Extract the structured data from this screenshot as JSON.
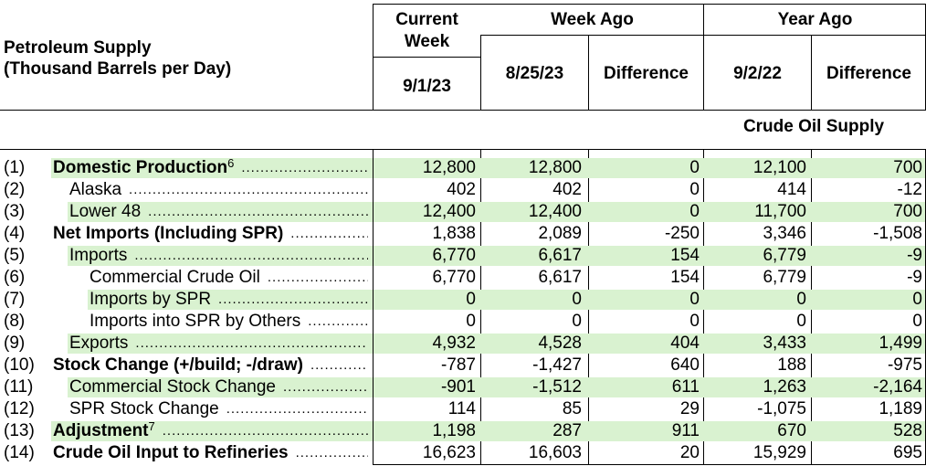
{
  "header": {
    "title_line1": "Petroleum Supply",
    "title_line2": "(Thousand Barrels per Day)",
    "current_week_line1": "Current",
    "current_week_line2": "Week",
    "current_week_date": "9/1/23",
    "week_ago": "Week Ago",
    "week_ago_date": "8/25/23",
    "week_ago_diff": "Difference",
    "year_ago": "Year Ago",
    "year_ago_date": "9/2/22",
    "year_ago_diff": "Difference"
  },
  "section_title": "Crude Oil Supply",
  "rows": [
    {
      "num": "(1)",
      "label": "Domestic Production",
      "sup": "6",
      "indent": 0,
      "bold": true,
      "shade": true,
      "current": "12,800",
      "week": "12,800",
      "week_diff": "0",
      "year": "12,100",
      "year_diff": "700"
    },
    {
      "num": "(2)",
      "label": "Alaska",
      "sup": "",
      "indent": 1,
      "bold": false,
      "shade": false,
      "current": "402",
      "week": "402",
      "week_diff": "0",
      "year": "414",
      "year_diff": "-12"
    },
    {
      "num": "(3)",
      "label": "Lower 48",
      "sup": "",
      "indent": 1,
      "bold": false,
      "shade": true,
      "current": "12,400",
      "week": "12,400",
      "week_diff": "0",
      "year": "11,700",
      "year_diff": "700"
    },
    {
      "num": "(4)",
      "label": "Net Imports (Including SPR)",
      "sup": "",
      "indent": 0,
      "bold": true,
      "shade": false,
      "current": "1,838",
      "week": "2,089",
      "week_diff": "-250",
      "year": "3,346",
      "year_diff": "-1,508"
    },
    {
      "num": "(5)",
      "label": "Imports",
      "sup": "",
      "indent": 1,
      "bold": false,
      "shade": true,
      "current": "6,770",
      "week": "6,617",
      "week_diff": "154",
      "year": "6,779",
      "year_diff": "-9"
    },
    {
      "num": "(6)",
      "label": "Commercial Crude Oil",
      "sup": "",
      "indent": 2,
      "bold": false,
      "shade": false,
      "current": "6,770",
      "week": "6,617",
      "week_diff": "154",
      "year": "6,779",
      "year_diff": "-9"
    },
    {
      "num": "(7)",
      "label": "Imports by SPR",
      "sup": "",
      "indent": 2,
      "bold": false,
      "shade": true,
      "current": "0",
      "week": "0",
      "week_diff": "0",
      "year": "0",
      "year_diff": "0"
    },
    {
      "num": "(8)",
      "label": "Imports into SPR by Others",
      "sup": "",
      "indent": 2,
      "bold": false,
      "shade": false,
      "current": "0",
      "week": "0",
      "week_diff": "0",
      "year": "0",
      "year_diff": "0"
    },
    {
      "num": "(9)",
      "label": "Exports",
      "sup": "",
      "indent": 1,
      "bold": false,
      "shade": true,
      "current": "4,932",
      "week": "4,528",
      "week_diff": "404",
      "year": "3,433",
      "year_diff": "1,499"
    },
    {
      "num": "(10)",
      "label": "Stock Change (+/build; -/draw)",
      "sup": "",
      "indent": 0,
      "bold": true,
      "shade": false,
      "current": "-787",
      "week": "-1,427",
      "week_diff": "640",
      "year": "188",
      "year_diff": "-975"
    },
    {
      "num": "(11)",
      "label": "Commercial Stock Change",
      "sup": "",
      "indent": 1,
      "bold": false,
      "shade": true,
      "current": "-901",
      "week": "-1,512",
      "week_diff": "611",
      "year": "1,263",
      "year_diff": "-2,164"
    },
    {
      "num": "(12)",
      "label": "SPR Stock Change",
      "sup": "",
      "indent": 1,
      "bold": false,
      "shade": false,
      "current": "114",
      "week": "85",
      "week_diff": "29",
      "year": "-1,075",
      "year_diff": "1,189"
    },
    {
      "num": "(13)",
      "label": "Adjustment",
      "sup": "7",
      "indent": 0,
      "bold": true,
      "shade": true,
      "current": "1,198",
      "week": "287",
      "week_diff": "911",
      "year": "670",
      "year_diff": "528"
    },
    {
      "num": "(14)",
      "label": "Crude Oil Input to Refineries",
      "sup": "",
      "indent": 0,
      "bold": true,
      "shade": false,
      "current": "16,623",
      "week": "16,603",
      "week_diff": "20",
      "year": "15,929",
      "year_diff": "695"
    }
  ]
}
